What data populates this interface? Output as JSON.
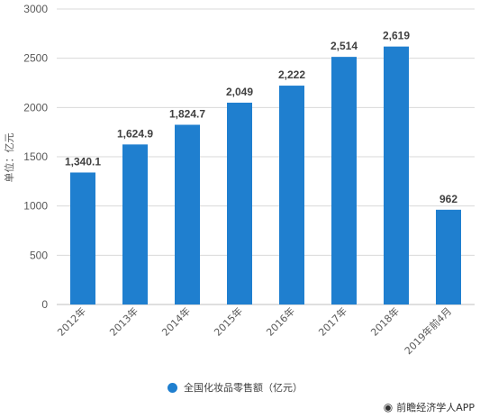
{
  "chart_data": {
    "type": "bar",
    "categories": [
      "2012年",
      "2013年",
      "2014年",
      "2015年",
      "2016年",
      "2017年",
      "2018年",
      "2019年前4月"
    ],
    "series": [
      {
        "name": "全国化妆品零售额（亿元）",
        "values": [
          1340.1,
          1624.9,
          1824.7,
          2049,
          2222,
          2514,
          2619,
          962
        ],
        "labels": [
          "1,340.1",
          "1,624.9",
          "1,824.7",
          "2,049",
          "2,222",
          "2,514",
          "2,619",
          "962"
        ],
        "color": "#1f7fcf"
      }
    ],
    "yticks": [
      "0",
      "500",
      "1000",
      "1500",
      "2000",
      "2500",
      "3000"
    ],
    "ylim": [
      0,
      3000
    ],
    "ylabel": "单位：亿元",
    "grid": true,
    "legend_position": "bottom"
  },
  "legend": {
    "label": "全国化妆品零售额（亿元）"
  },
  "credit": {
    "text": "前瞻经济学人APP",
    "icon": "wechat-icon"
  }
}
